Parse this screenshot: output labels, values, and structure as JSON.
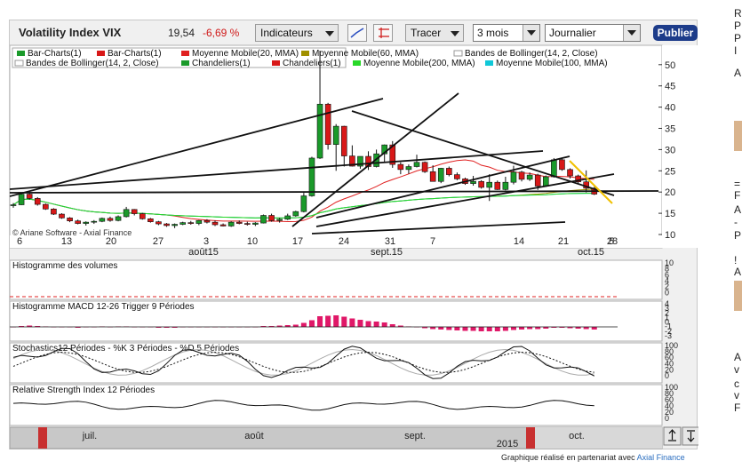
{
  "toolbar": {
    "title": "Volatility Index VIX",
    "price": "19,54",
    "change": "-6,69 %",
    "indicators_label": "Indicateurs",
    "draw_label": "Tracer",
    "period_value": "3 mois",
    "interval_value": "Journalier",
    "publish_label": "Publier"
  },
  "legend": [
    {
      "label": "Bar-Charts(1)",
      "color": "#1a9a2a"
    },
    {
      "label": "Bar-Charts(1)",
      "color": "#d81818"
    },
    {
      "label": "Moyenne Mobile(20, MMA)",
      "color": "#e02020"
    },
    {
      "label": "Moyenne Mobile(60, MMA)",
      "color": "#a09000"
    },
    {
      "label": "Bandes de Bollinger(14, 2, Close)",
      "color": "#ffffff"
    },
    {
      "label": "Bandes de Bollinger(14, 2, Close)",
      "color": "#ffffff"
    },
    {
      "label": "Chandeliers(1)",
      "color": "#1a9a2a"
    },
    {
      "label": "Chandeliers(1)",
      "color": "#d81818"
    },
    {
      "label": "Moyenne Mobile(200, MMA)",
      "color": "#28d828"
    },
    {
      "label": "Moyenne Mobile(100, MMA)",
      "color": "#10c8d8"
    }
  ],
  "watermark": "© Ariane Software - Axial Finance",
  "chart_data": {
    "type": "candlestick",
    "y_ticks": [
      10,
      15,
      20,
      25,
      30,
      35,
      40,
      45,
      50
    ],
    "ylim": [
      10,
      52
    ],
    "x_tick_labels": [
      "6",
      "13",
      "20",
      "27",
      "3",
      "10",
      "17",
      "24",
      "31",
      "7",
      "14",
      "21",
      "28",
      "5"
    ],
    "month_labels": [
      "août15",
      "sept.15",
      "oct.15"
    ],
    "candles": [
      [
        17.0,
        17.4,
        16.3,
        17.0
      ],
      [
        17.0,
        19.8,
        16.9,
        19.5
      ],
      [
        19.5,
        20.3,
        18.2,
        18.5
      ],
      [
        18.5,
        18.8,
        16.8,
        17.1
      ],
      [
        17.1,
        17.3,
        15.8,
        16.0
      ],
      [
        16.0,
        16.2,
        14.6,
        14.8
      ],
      [
        14.8,
        15.0,
        13.7,
        13.9
      ],
      [
        13.9,
        14.1,
        12.9,
        13.2
      ],
      [
        13.2,
        13.5,
        12.4,
        12.6
      ],
      [
        12.6,
        13.1,
        12.1,
        12.9
      ],
      [
        12.9,
        13.4,
        12.5,
        13.1
      ],
      [
        13.1,
        14.0,
        12.9,
        13.8
      ],
      [
        13.8,
        14.2,
        13.0,
        13.3
      ],
      [
        13.3,
        14.5,
        13.1,
        14.2
      ],
      [
        14.2,
        16.5,
        14.0,
        15.9
      ],
      [
        15.9,
        16.0,
        14.5,
        14.9
      ],
      [
        14.9,
        15.1,
        13.5,
        13.7
      ],
      [
        13.7,
        13.9,
        12.8,
        13.0
      ],
      [
        13.0,
        13.2,
        12.2,
        12.5
      ],
      [
        12.5,
        12.7,
        11.8,
        12.1
      ],
      [
        12.1,
        12.6,
        11.5,
        12.4
      ],
      [
        12.4,
        13.0,
        12.2,
        12.8
      ],
      [
        12.8,
        13.2,
        12.3,
        12.6
      ],
      [
        12.6,
        13.4,
        12.2,
        13.3
      ],
      [
        13.3,
        13.6,
        12.6,
        12.9
      ],
      [
        12.9,
        13.3,
        12.0,
        12.3
      ],
      [
        12.3,
        12.6,
        11.9,
        12.0
      ],
      [
        12.0,
        13.1,
        11.8,
        12.9
      ],
      [
        12.9,
        13.3,
        12.4,
        12.6
      ],
      [
        12.6,
        13.0,
        12.1,
        12.4
      ],
      [
        12.4,
        12.9,
        12.0,
        12.7
      ],
      [
        12.7,
        14.7,
        12.6,
        14.5
      ],
      [
        14.5,
        14.9,
        13.0,
        13.3
      ],
      [
        13.3,
        13.9,
        12.8,
        13.6
      ],
      [
        13.6,
        14.9,
        13.4,
        14.4
      ],
      [
        14.4,
        15.6,
        14.2,
        15.4
      ],
      [
        15.4,
        19.8,
        15.2,
        19.1
      ],
      [
        19.1,
        28.3,
        18.9,
        28.0
      ],
      [
        28.0,
        53.3,
        27.8,
        40.7
      ],
      [
        40.7,
        41.0,
        30.0,
        31.2
      ],
      [
        31.2,
        36.0,
        25.0,
        35.5
      ],
      [
        35.5,
        35.6,
        26.0,
        28.5
      ],
      [
        28.5,
        31.0,
        26.0,
        26.1
      ],
      [
        26.1,
        28.4,
        25.5,
        28.4
      ],
      [
        28.4,
        29.6,
        25.2,
        26.0
      ],
      [
        26.0,
        30.0,
        25.8,
        29.0
      ],
      [
        29.0,
        31.2,
        27.0,
        31.1
      ],
      [
        31.1,
        32.0,
        25.7,
        26.5
      ],
      [
        26.5,
        27.0,
        24.2,
        25.3
      ],
      [
        25.3,
        26.5,
        24.3,
        26.0
      ],
      [
        26.0,
        28.8,
        25.8,
        27.0
      ],
      [
        27.0,
        27.2,
        24.5,
        24.8
      ],
      [
        24.8,
        26.3,
        22.5,
        22.5
      ],
      [
        22.5,
        25.7,
        22.1,
        25.6
      ],
      [
        25.6,
        26.0,
        23.7,
        24.1
      ],
      [
        24.1,
        24.6,
        22.8,
        23.1
      ],
      [
        23.1,
        23.4,
        21.7,
        22.0
      ],
      [
        22.0,
        23.8,
        21.5,
        22.5
      ],
      [
        22.5,
        22.8,
        20.8,
        21.1
      ],
      [
        21.1,
        24.2,
        17.9,
        22.3
      ],
      [
        22.3,
        22.7,
        20.5,
        20.6
      ],
      [
        20.6,
        23.6,
        20.4,
        22.3
      ],
      [
        22.3,
        26.2,
        21.8,
        24.7
      ],
      [
        24.7,
        25.0,
        22.5,
        23.0
      ],
      [
        23.0,
        24.6,
        22.6,
        24.0
      ],
      [
        24.0,
        24.3,
        20.5,
        21.4
      ],
      [
        21.4,
        23.9,
        21.2,
        23.6
      ],
      [
        23.6,
        28.0,
        23.4,
        27.6
      ],
      [
        27.6,
        27.9,
        25.0,
        25.3
      ],
      [
        25.3,
        25.6,
        23.2,
        23.8
      ],
      [
        23.8,
        24.1,
        22.0,
        22.4
      ],
      [
        22.4,
        25.1,
        19.9,
        20.9
      ],
      [
        20.9,
        21.2,
        19.3,
        19.5
      ]
    ],
    "panels": [
      {
        "title": "Histogramme des volumes",
        "y_ticks": [
          "10",
          "8",
          "6",
          "4",
          "2",
          "0"
        ]
      },
      {
        "title": "Histogramme MACD 12-26   Trigger 9 Périodes",
        "y_ticks": [
          "4",
          "3",
          "2",
          "1",
          "0",
          "-1",
          "-2",
          "-3"
        ]
      },
      {
        "title": "Stochastics12 Périodes   -  %K 3 Périodes   -  %D 5 Périodes",
        "y_ticks": [
          "100",
          "80",
          "60",
          "40",
          "20",
          "0"
        ]
      },
      {
        "title": "Relative Strength Index 12 Périodes",
        "y_ticks": [
          "100",
          "80",
          "60",
          "40",
          "20",
          "0"
        ]
      }
    ],
    "navigator": {
      "months": [
        "juil.",
        "août",
        "sept.",
        "oct."
      ],
      "year": "2015"
    }
  },
  "footer": {
    "text": "Graphique réalisé en partenariat avec",
    "link": "Axial Finance"
  },
  "side_text": [
    "R",
    "P",
    "P",
    "I",
    "A",
    "=",
    "F",
    "A",
    "-",
    "P",
    "!",
    "A",
    "A",
    "v",
    "c",
    "v",
    "F"
  ]
}
